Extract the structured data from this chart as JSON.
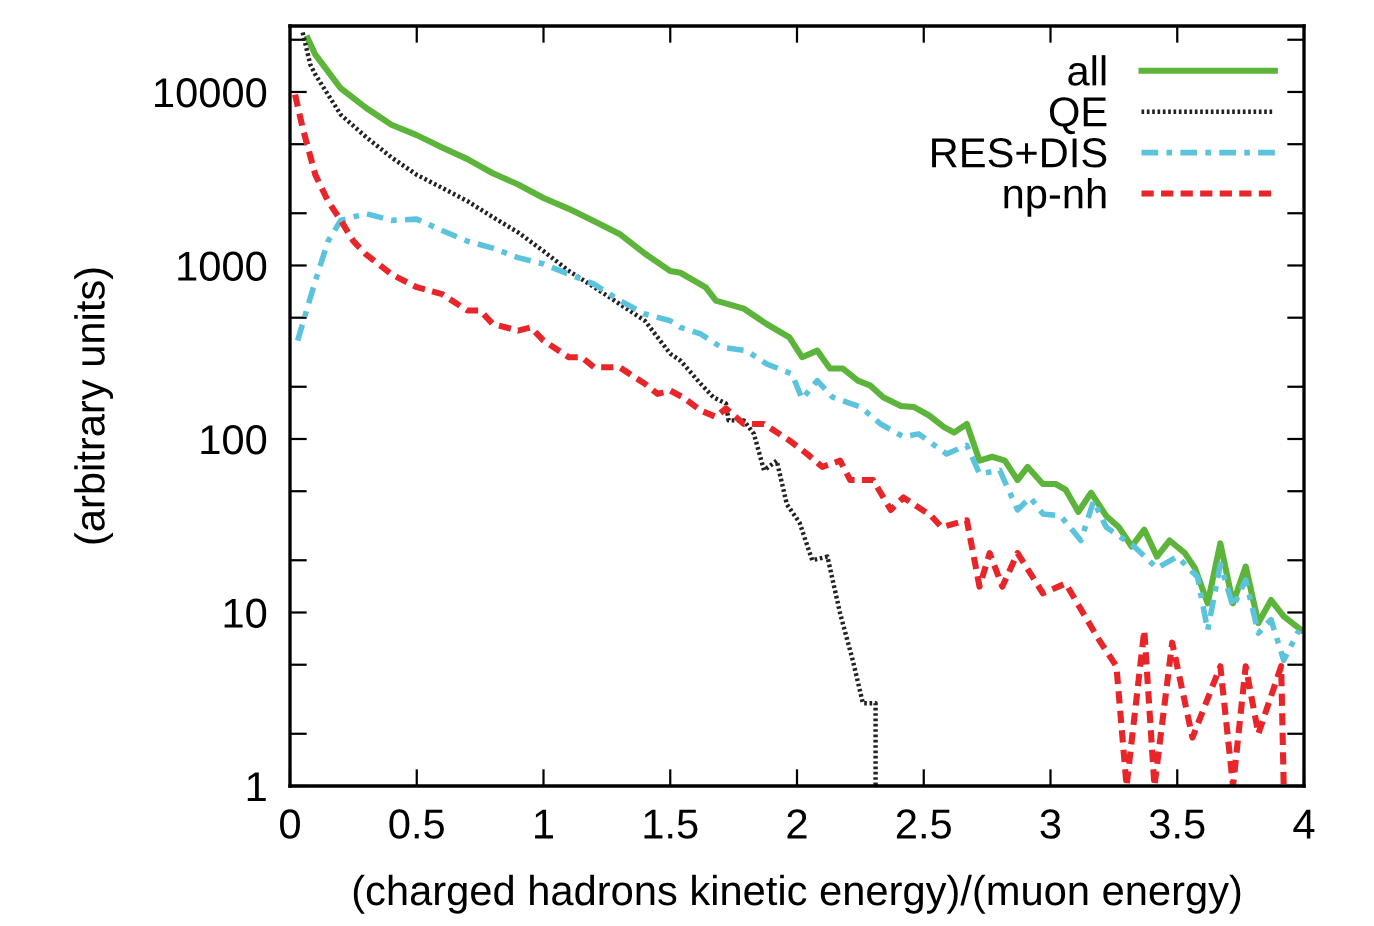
{
  "chart_data": {
    "type": "line",
    "xlabel": "(charged hadrons kinetic energy)/(muon energy)",
    "ylabel": "(arbitrary units)",
    "log": "y",
    "grid": false,
    "legend": "top right",
    "xlim": [
      0,
      4
    ],
    "ylim": [
      1,
      24000
    ],
    "xticks": [
      0,
      0.5,
      1,
      1.5,
      2,
      2.5,
      3,
      3.5,
      4
    ],
    "yticks": [
      1,
      {
        "value": 2,
        "label": null
      },
      {
        "value": 5,
        "label": null
      },
      10,
      {
        "value": 20,
        "label": null
      },
      {
        "value": 50,
        "label": null
      },
      100,
      {
        "value": 200,
        "label": null
      },
      {
        "value": 500,
        "label": null
      },
      1000,
      {
        "value": 2000,
        "label": null
      },
      {
        "value": 5000,
        "label": null
      },
      10000,
      {
        "value": 20000,
        "label": null
      }
    ],
    "series": [
      {
        "name": "all",
        "color": "#5cb53a",
        "line_style": "solid",
        "x": [
          0.07,
          0.1,
          0.2,
          0.3,
          0.4,
          0.5,
          0.6,
          0.7,
          0.8,
          0.9,
          1.0,
          1.1,
          1.2,
          1.3,
          1.4,
          1.5,
          1.54,
          1.64,
          1.68,
          1.79,
          1.88,
          1.97,
          2.02,
          2.08,
          2.13,
          2.18,
          2.24,
          2.29,
          2.34,
          2.41,
          2.46,
          2.52,
          2.58,
          2.62,
          2.67,
          2.72,
          2.77,
          2.82,
          2.87,
          2.91,
          2.97,
          3.02,
          3.06,
          3.11,
          3.16,
          3.22,
          3.27,
          3.32,
          3.37,
          3.42,
          3.47,
          3.53,
          3.57,
          3.62,
          3.67,
          3.72,
          3.77,
          3.82,
          3.87,
          3.92,
          3.99
        ],
        "values": [
          20400,
          16400,
          10500,
          8100,
          6470,
          5640,
          4780,
          4100,
          3400,
          2930,
          2450,
          2120,
          1800,
          1520,
          1170,
          930,
          908,
          748,
          627,
          564,
          460,
          385,
          296,
          323,
          255,
          255,
          217,
          203,
          174,
          155,
          153,
          137,
          117,
          109,
          122,
          75,
          79,
          75,
          58,
          69,
          55,
          55,
          51,
          38,
          49,
          36,
          31,
          24,
          30,
          21,
          26,
          22,
          18,
          11.3,
          25,
          11.3,
          18.4,
          8.7,
          11.8,
          9.5,
          7.9
        ]
      },
      {
        "name": "QE",
        "color": "#222222",
        "line_style": "dotted",
        "x": [
          0.05,
          0.08,
          0.1,
          0.2,
          0.3,
          0.4,
          0.5,
          0.6,
          0.7,
          0.8,
          0.9,
          1.0,
          1.1,
          1.2,
          1.3,
          1.4,
          1.5,
          1.54,
          1.62,
          1.67,
          1.72,
          1.73,
          1.79,
          1.83,
          1.87,
          1.92,
          1.96,
          2.01,
          2.06,
          2.12,
          2.17,
          2.22,
          2.26,
          2.31,
          2.31
        ],
        "values": [
          22000,
          14400,
          12600,
          7400,
          5500,
          4200,
          3330,
          2800,
          2350,
          1900,
          1550,
          1210,
          930,
          750,
          600,
          480,
          310,
          283,
          208,
          174,
          160,
          128,
          128,
          107,
          66,
          75,
          42,
          33,
          20,
          21,
          9.9,
          5.3,
          3.0,
          3.0,
          1
        ]
      },
      {
        "name": "RES+DIS",
        "color": "#5bc3dc",
        "line_style": "dashdot",
        "x": [
          0.03,
          0.1,
          0.15,
          0.2,
          0.3,
          0.4,
          0.5,
          0.6,
          0.7,
          0.8,
          0.9,
          1.0,
          1.1,
          1.2,
          1.3,
          1.4,
          1.5,
          1.54,
          1.62,
          1.7,
          1.8,
          1.88,
          1.98,
          2.02,
          2.08,
          2.14,
          2.25,
          2.33,
          2.42,
          2.48,
          2.59,
          2.67,
          2.72,
          2.8,
          2.87,
          2.92,
          2.97,
          3.04,
          3.12,
          3.17,
          3.22,
          3.33,
          3.42,
          3.5,
          3.58,
          3.62,
          3.67,
          3.72,
          3.77,
          3.82,
          3.87,
          3.92,
          3.98
        ],
        "values": [
          369,
          815,
          1380,
          1820,
          1990,
          1820,
          1850,
          1590,
          1380,
          1260,
          1110,
          1020,
          890,
          780,
          630,
          525,
          480,
          440,
          403,
          338,
          323,
          271,
          237,
          170,
          217,
          174,
          153,
          122,
          103,
          107,
          82,
          92,
          63,
          66,
          39,
          46,
          37,
          36,
          26,
          44,
          31,
          24,
          18,
          21,
          16,
          7.9,
          19,
          10.8,
          15.4,
          7.6,
          9.1,
          5.3,
          7.9
        ]
      },
      {
        "name": "np-nh",
        "color": "#e8262a",
        "line_style": "dashed",
        "x": [
          0.02,
          0.05,
          0.1,
          0.15,
          0.2,
          0.25,
          0.3,
          0.4,
          0.5,
          0.6,
          0.7,
          0.75,
          0.8,
          0.9,
          0.95,
          1.0,
          1.1,
          1.15,
          1.2,
          1.3,
          1.4,
          1.45,
          1.5,
          1.55,
          1.62,
          1.68,
          1.72,
          1.79,
          1.87,
          1.97,
          2.04,
          2.1,
          2.17,
          2.21,
          2.3,
          2.37,
          2.42,
          2.53,
          2.57,
          2.67,
          2.72,
          2.76,
          2.81,
          2.87,
          2.97,
          3.06,
          3.19,
          3.26,
          3.3,
          3.37,
          3.41,
          3.48,
          3.56,
          3.67,
          3.72,
          3.77,
          3.82,
          3.91,
          3.92
        ],
        "values": [
          9660,
          6200,
          3330,
          2350,
          1820,
          1380,
          1160,
          890,
          750,
          684,
          550,
          550,
          460,
          421,
          440,
          369,
          296,
          296,
          259,
          259,
          208,
          182,
          190,
          174,
          146,
          134,
          150,
          122,
          122,
          98,
          82,
          69,
          75,
          58,
          58,
          39,
          46,
          36,
          31,
          34,
          14.1,
          22,
          14.1,
          22,
          12.9,
          14.7,
          7.0,
          4.9,
          1,
          7.9,
          1,
          6.7,
          1.9,
          4.9,
          1,
          4.9,
          2.0,
          4.9,
          1
        ]
      }
    ]
  }
}
